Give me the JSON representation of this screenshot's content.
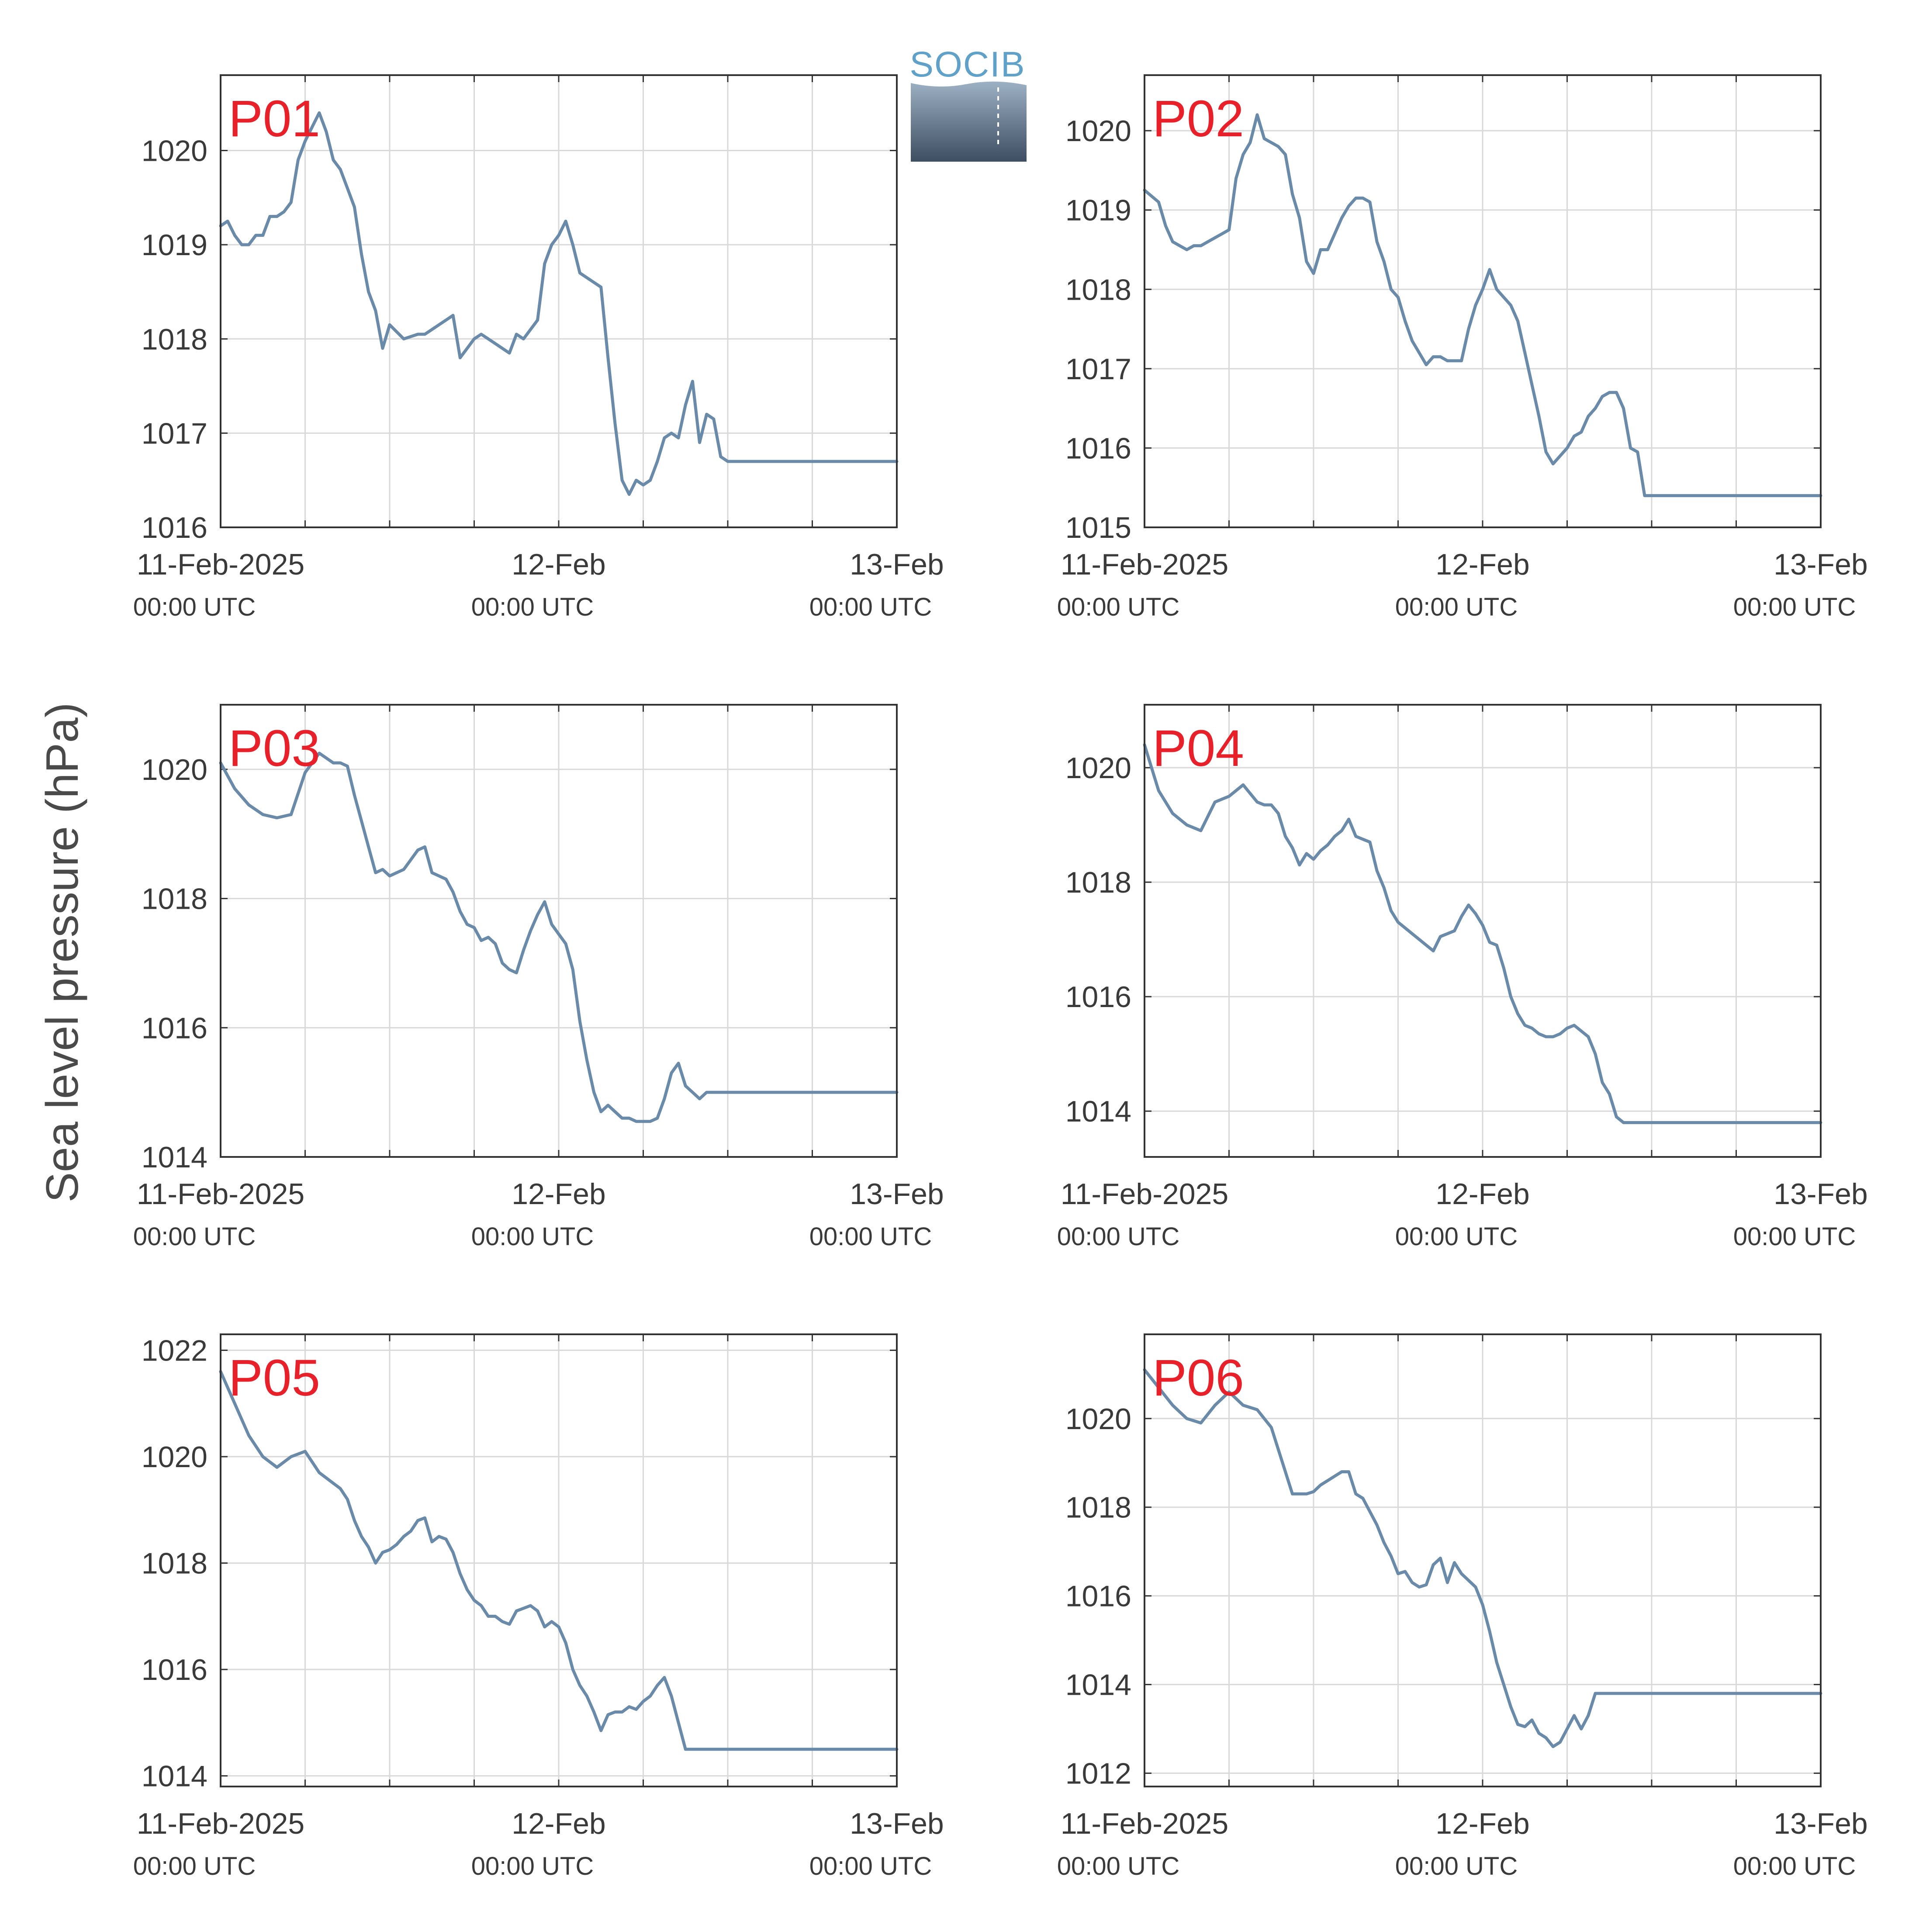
{
  "logo": {
    "text": "SOCIB"
  },
  "ylabel": "Sea level pressure (hPa)",
  "colors": {
    "line": "#6a8aaa",
    "panel_label": "#e8202a",
    "grid": "#d9d9d9",
    "axis": "#333333"
  },
  "chart_data": [
    {
      "type": "line",
      "panel": "P01",
      "ylim": [
        1016,
        1020.8
      ],
      "yticks": [
        1016,
        1017,
        1018,
        1019,
        1020
      ],
      "xlim": [
        0,
        48
      ],
      "xticks": [
        {
          "at": 0,
          "label": "11-Feb-2025",
          "sub": "00:00 UTC"
        },
        {
          "at": 24,
          "label": "12-Feb",
          "sub": "00:00 UTC"
        },
        {
          "at": 48,
          "label": "13-Feb",
          "sub": "00:00 UTC"
        }
      ],
      "grid": true,
      "x": [
        0,
        0.5,
        1,
        1.5,
        2,
        2.5,
        3,
        3.5,
        4,
        4.5,
        5,
        5.5,
        6,
        6.5,
        7,
        7.5,
        8,
        8.5,
        9,
        9.5,
        10,
        10.5,
        11,
        11.5,
        12,
        13,
        14,
        14.5,
        15,
        15.5,
        16,
        16.5,
        17,
        17.5,
        18,
        18.5,
        19,
        19.5,
        20,
        20.5,
        21,
        21.5,
        22,
        22.5,
        23,
        23.5,
        24,
        24.5,
        25,
        25.5,
        26,
        26.5,
        27,
        27.5,
        28,
        28.5,
        29,
        29.5,
        30,
        30.5,
        31,
        31.5,
        32,
        32.5,
        33,
        33.5,
        34,
        34.5,
        35,
        35.5,
        36,
        36.5,
        37,
        37.5,
        38,
        38.5,
        39,
        39.5,
        40,
        40.5,
        41,
        41.5,
        42,
        42.5,
        43,
        43.5,
        44,
        44.5,
        45,
        45.5,
        46,
        46.5,
        47,
        47.5,
        48
      ],
      "values": [
        1019.2,
        1019.25,
        1019.1,
        1019,
        1019,
        1019.1,
        1019.1,
        1019.3,
        1019.3,
        1019.35,
        1019.45,
        1019.9,
        1020.1,
        1020.25,
        1020.4,
        1020.2,
        1019.9,
        1019.8,
        1019.6,
        1019.4,
        1018.9,
        1018.5,
        1018.3,
        1017.9,
        1018.15,
        1018,
        1018.05,
        1018.05,
        1018.1,
        1018.15,
        1018.2,
        1018.25,
        1017.8,
        1017.9,
        1018,
        1018.05,
        1018,
        1017.95,
        1017.9,
        1017.85,
        1018.05,
        1018,
        1018.1,
        1018.2,
        1018.8,
        1019,
        1019.1,
        1019.25,
        1019,
        1018.7,
        1018.65,
        1018.6,
        1018.55,
        1017.8,
        1017.1,
        1016.5,
        1016.35,
        1016.5,
        1016.45,
        1016.5,
        1016.7,
        1016.95,
        1017.0,
        1016.95,
        1017.3,
        1017.55,
        1016.9,
        1017.2,
        1017.15,
        1016.75,
        1016.7,
        1016.7,
        1016.7,
        1016.7,
        1016.7,
        1016.7,
        1016.7,
        1016.7,
        1016.7,
        1016.7,
        1016.7,
        1016.7,
        1016.7,
        1016.7,
        1016.7,
        1016.7,
        1016.7,
        1016.7,
        1016.7,
        1016.7,
        1016.7,
        1016.7,
        1016.7,
        1016.7,
        1016.7
      ]
    },
    {
      "type": "line",
      "panel": "P02",
      "ylim": [
        1015,
        1020.7
      ],
      "yticks": [
        1015,
        1016,
        1017,
        1018,
        1019,
        1020
      ],
      "xlim": [
        0,
        48
      ],
      "xticks": [
        {
          "at": 0,
          "label": "11-Feb-2025",
          "sub": "00:00 UTC"
        },
        {
          "at": 24,
          "label": "12-Feb",
          "sub": "00:00 UTC"
        },
        {
          "at": 48,
          "label": "13-Feb",
          "sub": "00:00 UTC"
        }
      ],
      "grid": true,
      "x": [
        0,
        1,
        1.5,
        2,
        2.5,
        3,
        3.5,
        4,
        4.5,
        5,
        5.5,
        6,
        6.5,
        7,
        7.5,
        8,
        8.5,
        9,
        9.5,
        10,
        10.5,
        11,
        11.5,
        12,
        12.5,
        13,
        13.5,
        14,
        14.5,
        15,
        15.5,
        16,
        16.5,
        17,
        17.5,
        18,
        18.5,
        19,
        19.5,
        20,
        20.5,
        21,
        21.5,
        22,
        22.5,
        23,
        23.5,
        24,
        24.5,
        25,
        25.5,
        26,
        26.5,
        27,
        27.5,
        28,
        28.5,
        29,
        29.5,
        30,
        30.5,
        31,
        31.5,
        32,
        32.5,
        33,
        33.5,
        34,
        34.5,
        35,
        35.5,
        36,
        36.5,
        37,
        37.5,
        38,
        38.5,
        39,
        39.5,
        40,
        40.5,
        41,
        41.5,
        42,
        42.5,
        43,
        43.5,
        44,
        44.5,
        45,
        45.5,
        46,
        46.5,
        47,
        47.5,
        48
      ],
      "values": [
        1019.25,
        1019.1,
        1018.8,
        1018.6,
        1018.55,
        1018.5,
        1018.55,
        1018.55,
        1018.6,
        1018.65,
        1018.7,
        1018.75,
        1019.4,
        1019.7,
        1019.85,
        1020.2,
        1019.9,
        1019.85,
        1019.8,
        1019.7,
        1019.2,
        1018.9,
        1018.35,
        1018.2,
        1018.5,
        1018.5,
        1018.7,
        1018.9,
        1019.05,
        1019.15,
        1019.15,
        1019.1,
        1018.6,
        1018.35,
        1018.0,
        1017.9,
        1017.6,
        1017.35,
        1017.2,
        1017.05,
        1017.15,
        1017.15,
        1017.1,
        1017.1,
        1017.1,
        1017.5,
        1017.8,
        1018.0,
        1018.25,
        1018.0,
        1017.9,
        1017.8,
        1017.6,
        1017.2,
        1016.8,
        1016.4,
        1015.95,
        1015.8,
        1015.9,
        1016.0,
        1016.15,
        1016.2,
        1016.4,
        1016.5,
        1016.65,
        1016.7,
        1016.7,
        1016.5,
        1016.0,
        1015.95,
        1015.4,
        1015.4,
        1015.4,
        1015.4,
        1015.4,
        1015.4,
        1015.4,
        1015.4,
        1015.4,
        1015.4,
        1015.4,
        1015.4,
        1015.4,
        1015.4,
        1015.4,
        1015.4,
        1015.4,
        1015.4,
        1015.4,
        1015.4,
        1015.4,
        1015.4,
        1015.4,
        1015.4,
        1015.4,
        1015.4
      ]
    },
    {
      "type": "line",
      "panel": "P03",
      "ylim": [
        1014,
        1021
      ],
      "yticks": [
        1014,
        1016,
        1018,
        1020
      ],
      "xlim": [
        0,
        48
      ],
      "xticks": [
        {
          "at": 0,
          "label": "11-Feb-2025",
          "sub": "00:00 UTC"
        },
        {
          "at": 24,
          "label": "12-Feb",
          "sub": "00:00 UTC"
        },
        {
          "at": 48,
          "label": "13-Feb",
          "sub": "00:00 UTC"
        }
      ],
      "grid": true,
      "x": [
        0,
        1,
        2,
        3,
        4,
        5,
        6,
        7,
        8,
        8.5,
        9,
        9.5,
        10,
        10.5,
        11,
        11.5,
        12,
        12.5,
        13,
        13.5,
        14,
        14.5,
        15,
        15.5,
        16,
        16.5,
        17,
        17.5,
        18,
        18.5,
        19,
        19.5,
        20,
        20.5,
        21,
        21.5,
        22,
        22.5,
        23,
        23.5,
        24,
        24.5,
        25,
        25.5,
        26,
        26.5,
        27,
        27.5,
        28,
        28.5,
        29,
        29.5,
        30,
        30.5,
        31,
        31.5,
        32,
        32.5,
        33,
        33.5,
        34,
        34.5,
        35,
        35.5,
        36,
        36.5,
        37,
        37.5,
        38,
        38.5,
        39,
        39.5,
        40,
        40.5,
        41,
        41.5,
        42,
        42.5,
        43,
        43.5,
        44,
        44.5,
        45,
        45.5,
        46,
        46.5,
        47,
        47.5,
        48
      ],
      "values": [
        1020.1,
        1019.7,
        1019.45,
        1019.3,
        1019.25,
        1019.3,
        1019.95,
        1020.25,
        1020.1,
        1020.1,
        1020.05,
        1019.6,
        1019.2,
        1018.8,
        1018.4,
        1018.45,
        1018.35,
        1018.4,
        1018.45,
        1018.6,
        1018.75,
        1018.8,
        1018.4,
        1018.35,
        1018.3,
        1018.1,
        1017.8,
        1017.6,
        1017.55,
        1017.35,
        1017.4,
        1017.3,
        1017.0,
        1016.9,
        1016.85,
        1017.2,
        1017.5,
        1017.75,
        1017.95,
        1017.6,
        1017.45,
        1017.3,
        1016.9,
        1016.1,
        1015.5,
        1015.0,
        1014.7,
        1014.8,
        1014.7,
        1014.6,
        1014.6,
        1014.55,
        1014.55,
        1014.55,
        1014.6,
        1014.9,
        1015.3,
        1015.45,
        1015.1,
        1015.0,
        1014.9,
        1015.0,
        1015.0,
        1015.0,
        1015.0,
        1015.0,
        1015.0,
        1015.0,
        1015.0,
        1015.0,
        1015.0,
        1015.0,
        1015.0,
        1015.0,
        1015.0,
        1015.0,
        1015.0,
        1015.0,
        1015.0,
        1015.0,
        1015.0,
        1015.0,
        1015.0,
        1015.0,
        1015.0,
        1015.0,
        1015.0,
        1015.0,
        1015.0
      ]
    },
    {
      "type": "line",
      "panel": "P04",
      "ylim": [
        1013.2,
        1021.1
      ],
      "yticks": [
        1014,
        1016,
        1018,
        1020
      ],
      "xlim": [
        0,
        48
      ],
      "xticks": [
        {
          "at": 0,
          "label": "11-Feb-2025",
          "sub": "00:00 UTC"
        },
        {
          "at": 24,
          "label": "12-Feb",
          "sub": "00:00 UTC"
        },
        {
          "at": 48,
          "label": "13-Feb",
          "sub": "00:00 UTC"
        }
      ],
      "grid": true,
      "x": [
        0,
        1,
        2,
        3,
        4,
        5,
        6,
        7,
        8,
        8.5,
        9,
        9.5,
        10,
        10.5,
        11,
        11.5,
        12,
        12.5,
        13,
        13.5,
        14,
        14.5,
        15,
        15.5,
        16,
        16.5,
        17,
        17.5,
        18,
        18.5,
        19,
        19.5,
        20,
        20.5,
        21,
        21.5,
        22,
        22.5,
        23,
        23.5,
        24,
        24.5,
        25,
        25.5,
        26,
        26.5,
        27,
        27.5,
        28,
        28.5,
        29,
        29.5,
        30,
        30.5,
        31,
        31.5,
        32,
        32.5,
        33,
        33.5,
        34,
        34.5,
        35,
        35.5,
        36,
        36.5,
        37,
        37.5,
        38,
        38.5,
        39,
        39.5,
        40,
        40.5,
        41,
        41.5,
        42,
        42.5,
        43,
        43.5,
        44,
        44.5,
        45,
        45.5,
        46,
        46.5,
        47,
        47.5,
        48
      ],
      "values": [
        1020.4,
        1019.6,
        1019.2,
        1019.0,
        1018.9,
        1019.4,
        1019.5,
        1019.7,
        1019.4,
        1019.35,
        1019.35,
        1019.2,
        1018.8,
        1018.6,
        1018.3,
        1018.5,
        1018.4,
        1018.55,
        1018.65,
        1018.8,
        1018.9,
        1019.1,
        1018.8,
        1018.75,
        1018.7,
        1018.2,
        1017.9,
        1017.5,
        1017.3,
        1017.2,
        1017.1,
        1017.0,
        1016.9,
        1016.8,
        1017.05,
        1017.1,
        1017.15,
        1017.4,
        1017.6,
        1017.45,
        1017.25,
        1016.95,
        1016.9,
        1016.5,
        1016.0,
        1015.7,
        1015.5,
        1015.45,
        1015.35,
        1015.3,
        1015.3,
        1015.35,
        1015.45,
        1015.5,
        1015.4,
        1015.3,
        1015.0,
        1014.5,
        1014.3,
        1013.9,
        1013.8,
        1013.8,
        1013.8,
        1013.8,
        1013.8,
        1013.8,
        1013.8,
        1013.8,
        1013.8,
        1013.8,
        1013.8,
        1013.8,
        1013.8,
        1013.8,
        1013.8,
        1013.8,
        1013.8,
        1013.8,
        1013.8,
        1013.8,
        1013.8,
        1013.8,
        1013.8,
        1013.8,
        1013.8,
        1013.8,
        1013.8,
        1013.8,
        1013.8
      ]
    },
    {
      "type": "line",
      "panel": "P05",
      "ylim": [
        1013.8,
        1022.3
      ],
      "yticks": [
        1014,
        1016,
        1018,
        1020,
        1022
      ],
      "xlim": [
        0,
        48
      ],
      "xticks": [
        {
          "at": 0,
          "label": "11-Feb-2025",
          "sub": "00:00 UTC"
        },
        {
          "at": 24,
          "label": "12-Feb",
          "sub": "00:00 UTC"
        },
        {
          "at": 48,
          "label": "13-Feb",
          "sub": "00:00 UTC"
        }
      ],
      "grid": true,
      "x": [
        0,
        1,
        2,
        3,
        4,
        5,
        6,
        7,
        8,
        8.5,
        9,
        9.5,
        10,
        10.5,
        11,
        11.5,
        12,
        12.5,
        13,
        13.5,
        14,
        14.5,
        15,
        15.5,
        16,
        16.5,
        17,
        17.5,
        18,
        18.5,
        19,
        19.5,
        20,
        20.5,
        21,
        21.5,
        22,
        22.5,
        23,
        23.5,
        24,
        24.5,
        25,
        25.5,
        26,
        26.5,
        27,
        27.5,
        28,
        28.5,
        29,
        29.5,
        30,
        30.5,
        31,
        31.5,
        32,
        32.5,
        33,
        33.5,
        34,
        34.5,
        35,
        35.5,
        36,
        36.5,
        37,
        37.5,
        38,
        38.5,
        39,
        39.5,
        40,
        40.5,
        41,
        41.5,
        42,
        42.5,
        43,
        43.5,
        44,
        44.5,
        45,
        45.5,
        46,
        46.5,
        47,
        47.5,
        48
      ],
      "values": [
        1021.6,
        1021.0,
        1020.4,
        1020.0,
        1019.8,
        1020.0,
        1020.1,
        1019.7,
        1019.5,
        1019.4,
        1019.2,
        1018.8,
        1018.5,
        1018.3,
        1018.0,
        1018.2,
        1018.25,
        1018.35,
        1018.5,
        1018.6,
        1018.8,
        1018.85,
        1018.4,
        1018.5,
        1018.45,
        1018.2,
        1017.8,
        1017.5,
        1017.3,
        1017.2,
        1017.0,
        1017.0,
        1016.9,
        1016.85,
        1017.1,
        1017.15,
        1017.2,
        1017.1,
        1016.8,
        1016.9,
        1016.8,
        1016.5,
        1016.0,
        1015.7,
        1015.5,
        1015.2,
        1014.85,
        1015.15,
        1015.2,
        1015.2,
        1015.3,
        1015.25,
        1015.4,
        1015.5,
        1015.7,
        1015.85,
        1015.5,
        1015.0,
        1014.5,
        1014.5,
        1014.5,
        1014.5,
        1014.5,
        1014.5,
        1014.5,
        1014.5,
        1014.5,
        1014.5,
        1014.5,
        1014.5,
        1014.5,
        1014.5,
        1014.5,
        1014.5,
        1014.5,
        1014.5,
        1014.5,
        1014.5,
        1014.5,
        1014.5,
        1014.5,
        1014.5,
        1014.5,
        1014.5,
        1014.5,
        1014.5,
        1014.5,
        1014.5,
        1014.5
      ]
    },
    {
      "type": "line",
      "panel": "P06",
      "ylim": [
        1011.7,
        1021.9
      ],
      "yticks": [
        1012,
        1014,
        1016,
        1018,
        1020
      ],
      "xlim": [
        0,
        48
      ],
      "xticks": [
        {
          "at": 0,
          "label": "11-Feb-2025",
          "sub": "00:00 UTC"
        },
        {
          "at": 24,
          "label": "12-Feb",
          "sub": "00:00 UTC"
        },
        {
          "at": 48,
          "label": "13-Feb",
          "sub": "00:00 UTC"
        }
      ],
      "grid": true,
      "x": [
        0,
        1,
        2,
        3,
        4,
        5,
        6,
        7,
        8,
        8.5,
        9,
        9.5,
        10,
        10.5,
        11,
        11.5,
        12,
        12.5,
        13,
        13.5,
        14,
        14.5,
        15,
        15.5,
        16,
        16.5,
        17,
        17.5,
        18,
        18.5,
        19,
        19.5,
        20,
        20.5,
        21,
        21.5,
        22,
        22.5,
        23,
        23.5,
        24,
        24.5,
        25,
        25.5,
        26,
        26.5,
        27,
        27.5,
        28,
        28.5,
        29,
        29.5,
        30,
        30.5,
        31,
        31.5,
        32,
        32.5,
        33,
        33.5,
        34,
        34.5,
        35,
        35.5,
        36,
        36.5,
        37,
        37.5,
        38,
        38.5,
        39,
        39.5,
        40,
        40.5,
        41,
        41.5,
        42,
        42.5,
        43,
        43.5,
        44,
        44.5,
        45,
        45.5,
        46,
        46.5,
        47,
        47.5,
        48
      ],
      "values": [
        1021.1,
        1020.7,
        1020.3,
        1020.0,
        1019.9,
        1020.3,
        1020.6,
        1020.3,
        1020.2,
        1020.0,
        1019.8,
        1019.3,
        1018.8,
        1018.3,
        1018.3,
        1018.3,
        1018.35,
        1018.5,
        1018.6,
        1018.7,
        1018.8,
        1018.8,
        1018.3,
        1018.2,
        1017.9,
        1017.6,
        1017.2,
        1016.9,
        1016.5,
        1016.55,
        1016.3,
        1016.2,
        1016.25,
        1016.7,
        1016.85,
        1016.3,
        1016.75,
        1016.5,
        1016.35,
        1016.2,
        1015.8,
        1015.2,
        1014.5,
        1014.0,
        1013.5,
        1013.1,
        1013.05,
        1013.2,
        1012.9,
        1012.8,
        1012.6,
        1012.7,
        1013.0,
        1013.3,
        1013.0,
        1013.3,
        1013.8,
        1013.8,
        1013.8,
        1013.8,
        1013.8,
        1013.8,
        1013.8,
        1013.8,
        1013.8,
        1013.8,
        1013.8,
        1013.8,
        1013.8,
        1013.8,
        1013.8,
        1013.8,
        1013.8,
        1013.8,
        1013.8,
        1013.8,
        1013.8,
        1013.8,
        1013.8,
        1013.8,
        1013.8,
        1013.8,
        1013.8,
        1013.8,
        1013.8,
        1013.8,
        1013.8,
        1013.8,
        1013.8
      ]
    }
  ]
}
